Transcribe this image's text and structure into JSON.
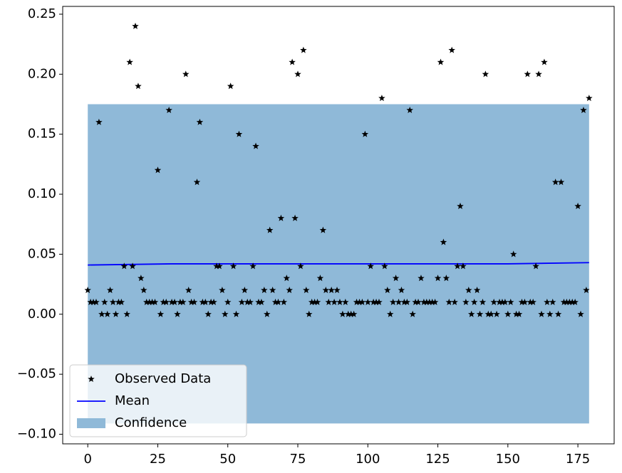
{
  "chart_data": {
    "type": "line",
    "xlim": [
      -8.95,
      187.95
    ],
    "ylim": [
      -0.108,
      0.2565
    ],
    "xticks": [
      0,
      25,
      50,
      75,
      100,
      125,
      150,
      175
    ],
    "yticks": [
      {
        "value": -0.1,
        "label": "−0.10"
      },
      {
        "value": -0.05,
        "label": "−0.05"
      },
      {
        "value": 0,
        "label": "0.00"
      },
      {
        "value": 0.05,
        "label": "0.05"
      },
      {
        "value": 0.1,
        "label": "0.10"
      },
      {
        "value": 0.15,
        "label": "0.15"
      },
      {
        "value": 0.2,
        "label": "0.20"
      },
      {
        "value": 0.25,
        "label": "0.25"
      }
    ],
    "legend": "lower left",
    "series": [
      {
        "name": "Observed Data",
        "style": "scatter",
        "color": "#000000",
        "x": [
          0,
          1,
          2,
          3,
          4,
          5,
          6,
          7,
          8,
          9,
          10,
          11,
          12,
          13,
          14,
          15,
          16,
          17,
          18,
          19,
          20,
          21,
          22,
          23,
          24,
          25,
          26,
          27,
          28,
          29,
          30,
          31,
          32,
          33,
          34,
          35,
          36,
          37,
          38,
          39,
          40,
          41,
          42,
          43,
          44,
          45,
          46,
          47,
          48,
          49,
          50,
          51,
          52,
          53,
          54,
          55,
          56,
          57,
          58,
          59,
          60,
          61,
          62,
          63,
          64,
          65,
          66,
          67,
          68,
          69,
          70,
          71,
          72,
          73,
          74,
          75,
          76,
          77,
          78,
          79,
          80,
          81,
          82,
          83,
          84,
          85,
          86,
          87,
          88,
          89,
          90,
          91,
          92,
          93,
          94,
          95,
          96,
          97,
          98,
          99,
          100,
          101,
          102,
          103,
          104,
          105,
          106,
          107,
          108,
          109,
          110,
          111,
          112,
          113,
          114,
          115,
          116,
          117,
          118,
          119,
          120,
          121,
          122,
          123,
          124,
          125,
          126,
          127,
          128,
          129,
          130,
          131,
          132,
          133,
          134,
          135,
          136,
          137,
          138,
          139,
          140,
          141,
          142,
          143,
          144,
          145,
          146,
          147,
          148,
          149,
          150,
          151,
          152,
          153,
          154,
          155,
          156,
          157,
          158,
          159,
          160,
          161,
          162,
          163,
          164,
          165,
          166,
          167,
          168,
          169,
          170,
          171,
          172,
          173,
          174,
          175,
          176,
          177,
          178,
          179
        ],
        "values": [
          0.02,
          0.01,
          0.01,
          0.01,
          0.16,
          0.0,
          0.01,
          0.0,
          0.02,
          0.01,
          0.0,
          0.01,
          0.01,
          0.04,
          0.0,
          0.21,
          0.04,
          0.24,
          0.19,
          0.03,
          0.02,
          0.01,
          0.01,
          0.01,
          0.01,
          0.12,
          0.0,
          0.01,
          0.01,
          0.17,
          0.01,
          0.01,
          0.0,
          0.01,
          0.01,
          0.2,
          0.02,
          0.01,
          0.01,
          0.11,
          0.16,
          0.01,
          0.01,
          0.0,
          0.01,
          0.01,
          0.04,
          0.04,
          0.02,
          0.0,
          0.01,
          0.19,
          0.04,
          0.0,
          0.15,
          0.01,
          0.02,
          0.01,
          0.01,
          0.04,
          0.14,
          0.01,
          0.01,
          0.02,
          0.0,
          0.07,
          0.02,
          0.01,
          0.01,
          0.08,
          0.01,
          0.03,
          0.02,
          0.21,
          0.08,
          0.2,
          0.04,
          0.22,
          0.02,
          0.0,
          0.01,
          0.01,
          0.01,
          0.03,
          0.07,
          0.02,
          0.01,
          0.02,
          0.01,
          0.02,
          0.01,
          0.0,
          0.01,
          0.0,
          0.0,
          0.0,
          0.01,
          0.01,
          0.01,
          0.15,
          0.01,
          0.04,
          0.01,
          0.01,
          0.01,
          0.18,
          0.04,
          0.02,
          0.0,
          0.01,
          0.03,
          0.01,
          0.02,
          0.01,
          0.01,
          0.17,
          0.0,
          0.01,
          0.01,
          0.03,
          0.01,
          0.01,
          0.01,
          0.01,
          0.01,
          0.03,
          0.21,
          0.06,
          0.03,
          0.01,
          0.22,
          0.01,
          0.04,
          0.09,
          0.04,
          0.01,
          0.02,
          0.0,
          0.01,
          0.02,
          0.0,
          0.01,
          0.2,
          0.0,
          0.0,
          0.01,
          0.0,
          0.01,
          0.01,
          0.01,
          0.0,
          0.01,
          0.05,
          0.0,
          0.0,
          0.01,
          0.01,
          0.2,
          0.01,
          0.01,
          0.04,
          0.2,
          0.0,
          0.21,
          0.01,
          0.0,
          0.01,
          0.11,
          0.0,
          0.11,
          0.01,
          0.01,
          0.01,
          0.01,
          0.01,
          0.09,
          0.0,
          0.17,
          0.02,
          0.18
        ]
      },
      {
        "name": "Mean",
        "style": "line",
        "color": "#0000ff",
        "x": [
          0,
          30,
          60,
          90,
          120,
          150,
          179
        ],
        "values": [
          0.041,
          0.042,
          0.042,
          0.042,
          0.042,
          0.042,
          0.043
        ]
      },
      {
        "name": "Confidence",
        "style": "band",
        "color": "#8fb9d8",
        "x": [
          0,
          179
        ],
        "upper": [
          0.175,
          0.175
        ],
        "lower": [
          -0.091,
          -0.091
        ]
      }
    ]
  }
}
